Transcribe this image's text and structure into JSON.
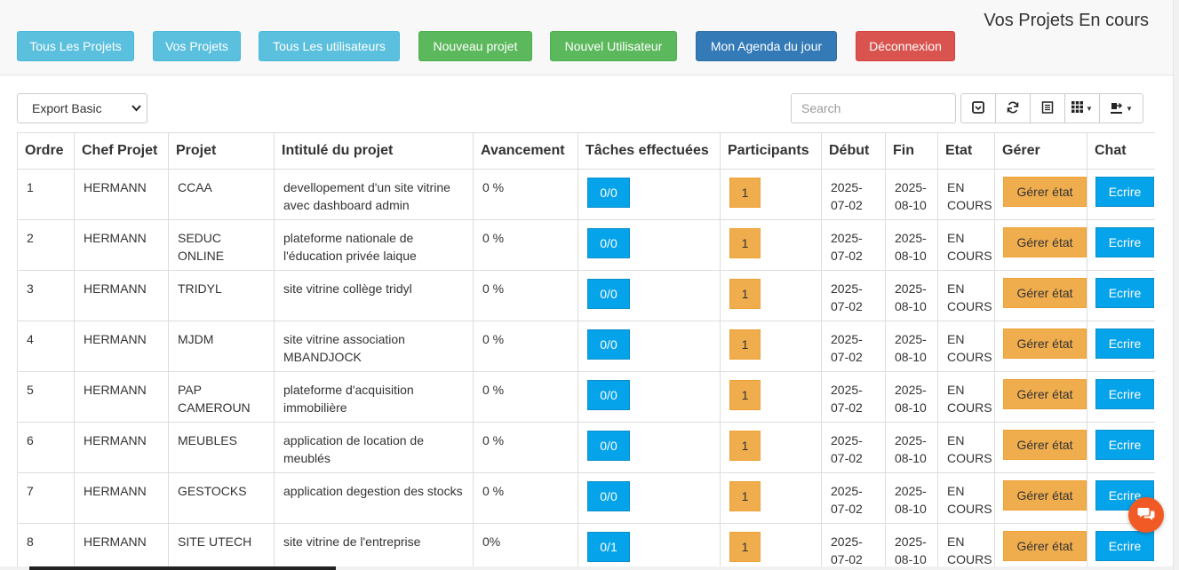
{
  "header": {
    "title": "Vos Projets En cours",
    "nav": [
      {
        "label": "Tous Les Projets",
        "color": "#5bc0de"
      },
      {
        "label": "Vos Projets",
        "color": "#5bc0de"
      },
      {
        "label": "Tous Les utilisateurs",
        "color": "#5bc0de"
      },
      {
        "label": "Nouveau projet",
        "color": "#5cb85c"
      },
      {
        "label": "Nouvel Utilisateur",
        "color": "#5cb85c"
      },
      {
        "label": "Mon Agenda du jour",
        "color": "#337ab7"
      },
      {
        "label": "Déconnexion",
        "color": "#d9534f"
      }
    ]
  },
  "toolbar": {
    "export_value": "Export Basic",
    "search_placeholder": "Search",
    "icons": [
      "toggle-icon",
      "refresh-icon",
      "list-icon",
      "columns-icon",
      "export-icon"
    ]
  },
  "table": {
    "columns": [
      "Ordre",
      "Chef Projet",
      "Projet",
      "Intitulé du projet",
      "Avancement",
      "Tâches effectuées",
      "Participants",
      "Début",
      "Fin",
      "Etat",
      "Gérer",
      "Chat"
    ],
    "rows": [
      {
        "ordre": "1",
        "chef": "HERMANN",
        "projet": "CCAA",
        "intitule": "devellopement d'un site vitrine avec dashboard admin",
        "avancement": "0 %",
        "taches": "0/0",
        "participants": "1",
        "debut": "2025-07-02",
        "fin": "2025-08-10",
        "etat": "EN COURS",
        "gerer": "Gérer état",
        "chat": "Ecrire"
      },
      {
        "ordre": "2",
        "chef": "HERMANN",
        "projet": "SEDUC ONLINE",
        "intitule": "plateforme nationale de l'éducation privée laique",
        "avancement": "0 %",
        "taches": "0/0",
        "participants": "1",
        "debut": "2025-07-02",
        "fin": "2025-08-10",
        "etat": "EN COURS",
        "gerer": "Gérer état",
        "chat": "Ecrire"
      },
      {
        "ordre": "3",
        "chef": "HERMANN",
        "projet": "TRIDYL",
        "intitule": "site vitrine collège tridyl",
        "avancement": "0 %",
        "taches": "0/0",
        "participants": "1",
        "debut": "2025-07-02",
        "fin": "2025-08-10",
        "etat": "EN COURS",
        "gerer": "Gérer état",
        "chat": "Ecrire"
      },
      {
        "ordre": "4",
        "chef": "HERMANN",
        "projet": "MJDM",
        "intitule": "site vitrine association MBANDJOCK",
        "avancement": "0 %",
        "taches": "0/0",
        "participants": "1",
        "debut": "2025-07-02",
        "fin": "2025-08-10",
        "etat": "EN COURS",
        "gerer": "Gérer état",
        "chat": "Ecrire"
      },
      {
        "ordre": "5",
        "chef": "HERMANN",
        "projet": "PAP CAMEROUN",
        "intitule": "plateforme d'acquisition immobilière",
        "avancement": "0 %",
        "taches": "0/0",
        "participants": "1",
        "debut": "2025-07-02",
        "fin": "2025-08-10",
        "etat": "EN COURS",
        "gerer": "Gérer état",
        "chat": "Ecrire"
      },
      {
        "ordre": "6",
        "chef": "HERMANN",
        "projet": "MEUBLES",
        "intitule": "application de location de meublés",
        "avancement": "0 %",
        "taches": "0/0",
        "participants": "1",
        "debut": "2025-07-02",
        "fin": "2025-08-10",
        "etat": "EN COURS",
        "gerer": "Gérer état",
        "chat": "Ecrire"
      },
      {
        "ordre": "7",
        "chef": "HERMANN",
        "projet": "GESTOCKS",
        "intitule": "application degestion des stocks",
        "avancement": "0 %",
        "taches": "0/0",
        "participants": "1",
        "debut": "2025-07-02",
        "fin": "2025-08-10",
        "etat": "EN COURS",
        "gerer": "Gérer état",
        "chat": "Ecrire"
      },
      {
        "ordre": "8",
        "chef": "HERMANN",
        "projet": "SITE UTECH",
        "intitule": "site vitrine de l'entreprise",
        "avancement": "0%",
        "taches": "0/1",
        "participants": "1",
        "debut": "2025-07-02",
        "fin": "2025-08-10",
        "etat": "EN COURS",
        "gerer": "Gérer état",
        "chat": "Ecrire"
      }
    ]
  }
}
